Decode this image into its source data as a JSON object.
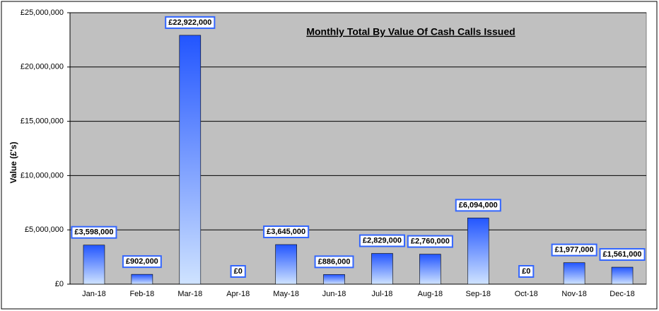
{
  "chart_data": {
    "type": "bar",
    "title": "Monthly Total By Value Of Cash Calls Issued",
    "y_label": "Value (£'s)",
    "categories": [
      "Jan-18",
      "Feb-18",
      "Mar-18",
      "Apr-18",
      "May-18",
      "Jun-18",
      "Jul-18",
      "Aug-18",
      "Sep-18",
      "Oct-18",
      "Nov-18",
      "Dec-18"
    ],
    "values": [
      3598000,
      902000,
      22922000,
      0,
      3645000,
      886000,
      2829000,
      2760000,
      6094000,
      0,
      1977000,
      1561000
    ],
    "value_labels": [
      "£3,598,000",
      "£902,000",
      "£22,922,000",
      "£0",
      "£3,645,000",
      "£886,000",
      "£2,829,000",
      "£2,760,000",
      "£6,094,000",
      "£0",
      "£1,977,000",
      "£1,561,000"
    ],
    "color": "#3366ff",
    "ylim": [
      0,
      25000000
    ],
    "yticks": [
      {
        "value": 0,
        "label": "£0"
      },
      {
        "value": 5000000,
        "label": "£5,000,000"
      },
      {
        "value": 10000000,
        "label": "£10,000,000"
      },
      {
        "value": 15000000,
        "label": "£15,000,000"
      },
      {
        "value": 20000000,
        "label": "£20,000,000"
      },
      {
        "value": 25000000,
        "label": "£25,000,000"
      }
    ],
    "grid": true
  }
}
